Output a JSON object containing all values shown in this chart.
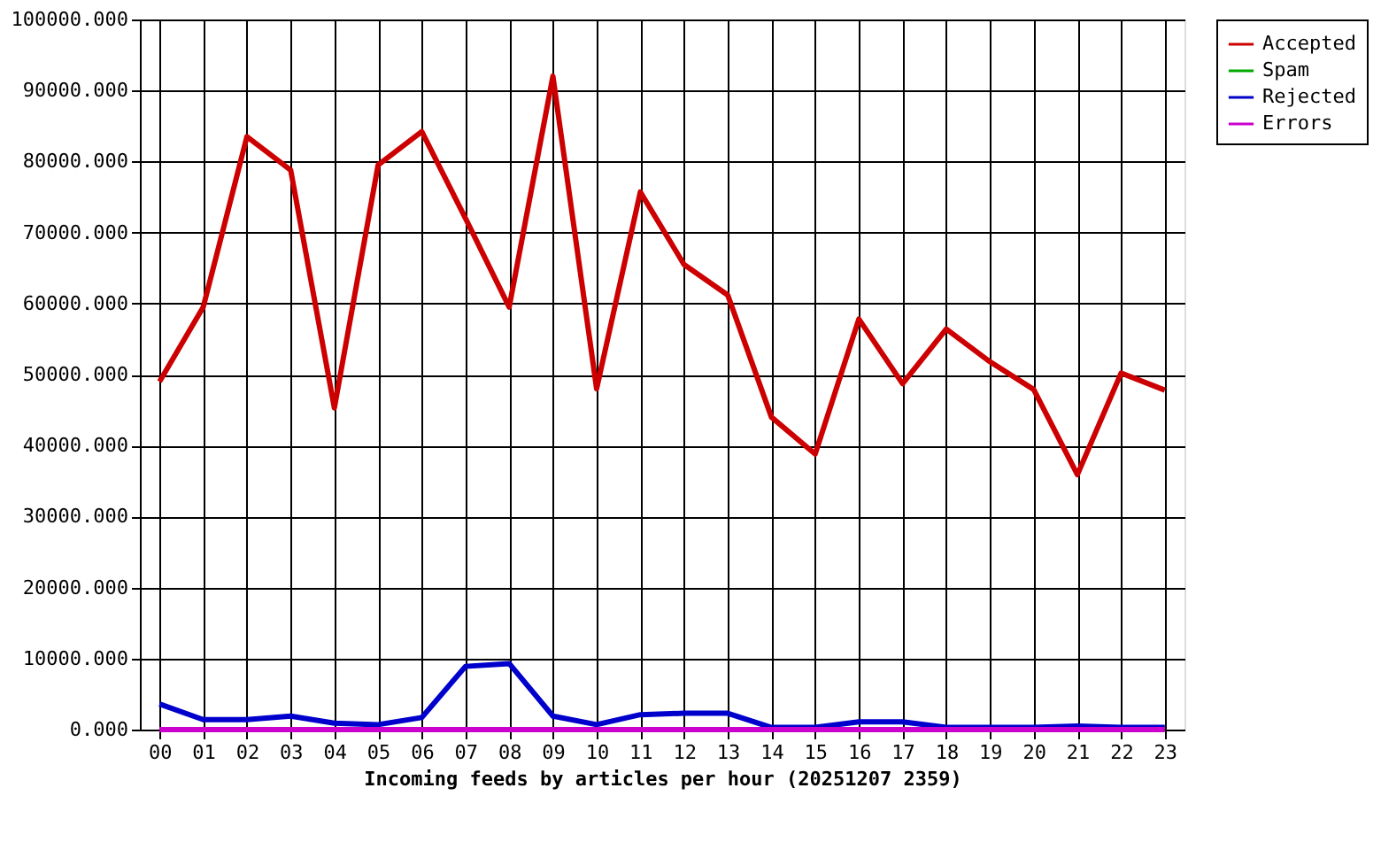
{
  "chart_data": {
    "type": "line",
    "xlabel": "Incoming feeds by articles per hour (20251207 2359)",
    "categories": [
      "00",
      "01",
      "02",
      "03",
      "04",
      "05",
      "06",
      "07",
      "08",
      "09",
      "10",
      "11",
      "12",
      "13",
      "14",
      "15",
      "16",
      "17",
      "18",
      "19",
      "20",
      "21",
      "22",
      "23"
    ],
    "series": [
      {
        "name": "Accepted",
        "color": "#cc0000",
        "values": [
          49000,
          59500,
          83500,
          78800,
          45300,
          79500,
          84200,
          72000,
          59500,
          92000,
          48000,
          75700,
          65500,
          61200,
          44000,
          38800,
          57800,
          48700,
          56400,
          51800,
          47900,
          35900,
          50200,
          47800
        ]
      },
      {
        "name": "Spam",
        "color": "#00aa00",
        "values": [
          null,
          null,
          null,
          null,
          null,
          null,
          null,
          null,
          null,
          null,
          null,
          null,
          null,
          null,
          null,
          null,
          null,
          null,
          null,
          null,
          null,
          null,
          null,
          null
        ]
      },
      {
        "name": "Rejected",
        "color": "#0000cc",
        "values": [
          3600,
          1400,
          1400,
          1900,
          900,
          700,
          1700,
          8900,
          9300,
          1900,
          700,
          2100,
          2300,
          2300,
          300,
          300,
          1100,
          1100,
          300,
          300,
          300,
          500,
          300,
          300
        ]
      },
      {
        "name": "Errors",
        "color": "#cc00cc",
        "values": [
          0,
          0,
          0,
          0,
          0,
          0,
          0,
          0,
          0,
          0,
          0,
          0,
          0,
          0,
          0,
          0,
          0,
          0,
          0,
          0,
          0,
          0,
          0,
          0
        ]
      }
    ],
    "ylim": [
      0,
      100000
    ],
    "yticks": [
      {
        "value": 0,
        "label": "0.000"
      },
      {
        "value": 10000,
        "label": "10000.000"
      },
      {
        "value": 20000,
        "label": "20000.000"
      },
      {
        "value": 30000,
        "label": "30000.000"
      },
      {
        "value": 40000,
        "label": "40000.000"
      },
      {
        "value": 50000,
        "label": "50000.000"
      },
      {
        "value": 60000,
        "label": "60000.000"
      },
      {
        "value": 70000,
        "label": "70000.000"
      },
      {
        "value": 80000,
        "label": "80000.000"
      },
      {
        "value": 90000,
        "label": "90000.000"
      },
      {
        "value": 100000,
        "label": "100000.000"
      }
    ],
    "grid": true,
    "legend": "top right",
    "marker": "none",
    "line_style": "solid"
  }
}
